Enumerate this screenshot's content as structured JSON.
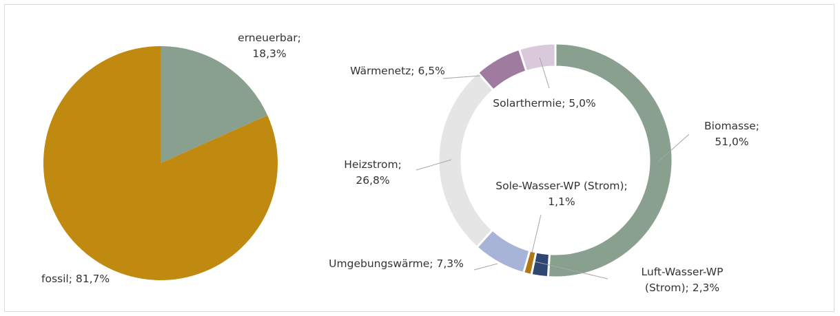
{
  "chart_data": [
    {
      "type": "pie",
      "categories": [
        "erneuerbar;",
        "fossil;"
      ],
      "values": [
        18.3,
        81.7
      ],
      "value_labels": [
        "18,3%",
        "81,7%"
      ],
      "colors": [
        "#8aa08e",
        "#c0890f"
      ]
    },
    {
      "type": "doughnut",
      "categories": [
        "Biomasse;",
        "Luft-Wasser-WP (Strom);",
        "Sole-Wasser-WP (Strom);",
        "Umgebungswärme;",
        "Heizstrom;",
        "Wärmenetz;",
        "Solarthermie;"
      ],
      "values": [
        51.0,
        2.3,
        1.1,
        7.3,
        26.8,
        6.5,
        5.0
      ],
      "value_labels": [
        "51,0%",
        "2,3%",
        "1,1%",
        "7,3%",
        "26,8%",
        "6,5%",
        "5,0%"
      ],
      "colors": [
        "#8aa08e",
        "#2f4672",
        "#b27712",
        "#a7b3d7",
        "#e5e5e5",
        "#9f7b9f",
        "#dac9da"
      ]
    }
  ]
}
